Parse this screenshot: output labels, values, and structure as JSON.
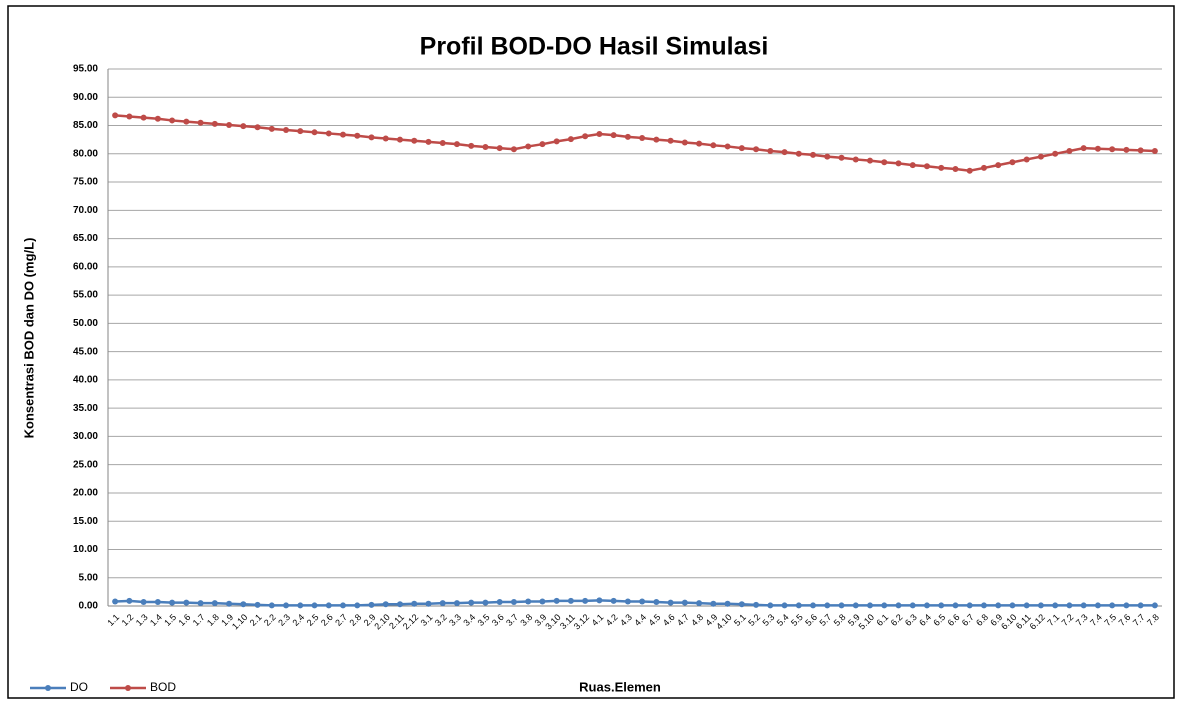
{
  "chart_data": {
    "type": "line",
    "title": "Profil BOD-DO Hasil Simulasi",
    "y_label": "Konsentrasi BOD dan DO (mg/L)",
    "x_label": "Ruas.Elemen",
    "categories": [
      "1.1",
      "1.2",
      "1.3",
      "1.4",
      "1.5",
      "1.6",
      "1.7",
      "1.8",
      "1.9",
      "1.10",
      "2.1",
      "2.2",
      "2.3",
      "2.4",
      "2.5",
      "2.6",
      "2.7",
      "2.8",
      "2.9",
      "2.10",
      "2.11",
      "2.12",
      "3.1",
      "3.2",
      "3.3",
      "3.4",
      "3.5",
      "3.6",
      "3.7",
      "3.8",
      "3.9",
      "3.10",
      "3.11",
      "3.12",
      "4.1",
      "4.2",
      "4.3",
      "4.4",
      "4.5",
      "4.6",
      "4.7",
      "4.8",
      "4.9",
      "4.10",
      "5.1",
      "5.2",
      "5.3",
      "5.4",
      "5.5",
      "5.6",
      "5.7",
      "5.8",
      "5.9",
      "5.10",
      "6.1",
      "6.2",
      "6.3",
      "6.4",
      "6.5",
      "6.6",
      "6.7",
      "6.8",
      "6.9",
      "6.10",
      "6.11",
      "6.12",
      "7.1",
      "7.2",
      "7.3",
      "7.4",
      "7.5",
      "7.6",
      "7.7",
      "7.8"
    ],
    "series": [
      {
        "name": "DO",
        "color": "#4a7ebb",
        "values": [
          0.8,
          0.9,
          0.7,
          0.7,
          0.6,
          0.6,
          0.5,
          0.5,
          0.4,
          0.3,
          0.2,
          0.1,
          0.1,
          0.1,
          0.1,
          0.1,
          0.1,
          0.1,
          0.2,
          0.3,
          0.3,
          0.4,
          0.4,
          0.5,
          0.5,
          0.6,
          0.6,
          0.7,
          0.7,
          0.8,
          0.8,
          0.9,
          0.9,
          0.9,
          1.0,
          0.9,
          0.8,
          0.8,
          0.7,
          0.6,
          0.6,
          0.5,
          0.4,
          0.4,
          0.3,
          0.2,
          0.1,
          0.1,
          0.1,
          0.1,
          0.1,
          0.1,
          0.1,
          0.1,
          0.1,
          0.1,
          0.1,
          0.1,
          0.1,
          0.1,
          0.1,
          0.1,
          0.1,
          0.1,
          0.1,
          0.1,
          0.1,
          0.1,
          0.1,
          0.1,
          0.1,
          0.1,
          0.1,
          0.1
        ]
      },
      {
        "name": "BOD",
        "color": "#be4b48",
        "values": [
          86.8,
          86.6,
          86.4,
          86.2,
          85.9,
          85.7,
          85.5,
          85.3,
          85.1,
          84.9,
          84.7,
          84.4,
          84.2,
          84.0,
          83.8,
          83.6,
          83.4,
          83.2,
          82.9,
          82.7,
          82.5,
          82.3,
          82.1,
          81.9,
          81.7,
          81.4,
          81.2,
          81.0,
          80.8,
          81.3,
          81.7,
          82.2,
          82.6,
          83.1,
          83.5,
          83.3,
          83.0,
          82.8,
          82.5,
          82.3,
          82.0,
          81.8,
          81.5,
          81.3,
          81.0,
          80.8,
          80.5,
          80.3,
          80.0,
          79.8,
          79.5,
          79.3,
          79.0,
          78.8,
          78.5,
          78.3,
          78.0,
          77.8,
          77.5,
          77.3,
          77.0,
          77.5,
          78.0,
          78.5,
          79.0,
          79.5,
          80.0,
          80.5,
          81.0,
          80.9,
          80.8,
          80.7,
          80.6,
          80.5
        ]
      }
    ],
    "ylim": [
      0,
      95
    ],
    "yticks": [
      {
        "value": 0,
        "label": "0.00"
      },
      {
        "value": 5,
        "label": "5.00"
      },
      {
        "value": 10,
        "label": "10.00"
      },
      {
        "value": 15,
        "label": "15.00"
      },
      {
        "value": 20,
        "label": "20.00"
      },
      {
        "value": 25,
        "label": "25.00"
      },
      {
        "value": 30,
        "label": "30.00"
      },
      {
        "value": 35,
        "label": "35.00"
      },
      {
        "value": 40,
        "label": "40.00"
      },
      {
        "value": 45,
        "label": "45.00"
      },
      {
        "value": 50,
        "label": "50.00"
      },
      {
        "value": 55,
        "label": "55.00"
      },
      {
        "value": 60,
        "label": "60.00"
      },
      {
        "value": 65,
        "label": "65.00"
      },
      {
        "value": 70,
        "label": "70.00"
      },
      {
        "value": 75,
        "label": "75.00"
      },
      {
        "value": 80,
        "label": "80.00"
      },
      {
        "value": 85,
        "label": "85.00"
      },
      {
        "value": 90,
        "label": "90.00"
      },
      {
        "value": 95,
        "label": "95.00"
      }
    ],
    "grid": true,
    "legend": "bottom-left"
  }
}
